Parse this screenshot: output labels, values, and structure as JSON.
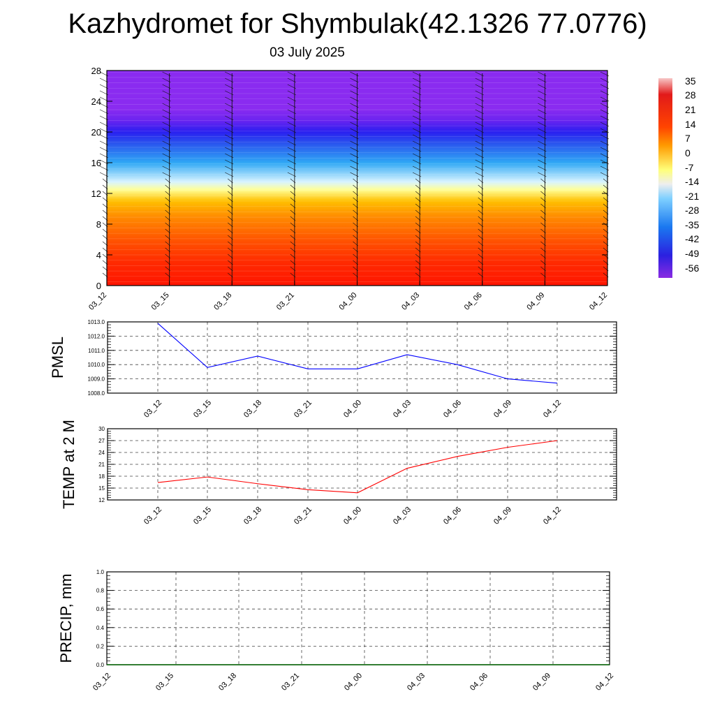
{
  "title": "Kazhydromet for Shymbulak(42.1326 77.0776)",
  "subtitle": "03 July 2025",
  "colorbar": {
    "labels": [
      "35",
      "28",
      "21",
      "14",
      "7",
      "0",
      "-7",
      "-14",
      "-21",
      "-28",
      "-35",
      "-42",
      "-49",
      "-56"
    ],
    "stops": [
      {
        "v": 38,
        "c": "#f7c6c6"
      },
      {
        "v": 30,
        "c": "#e21a1a"
      },
      {
        "v": 14,
        "c": "#ff4400"
      },
      {
        "v": 5,
        "c": "#ff9a00"
      },
      {
        "v": -7,
        "c": "#ffff7a"
      },
      {
        "v": -14,
        "c": "#eeeeee"
      },
      {
        "v": -21,
        "c": "#7fd0ff"
      },
      {
        "v": -35,
        "c": "#1a78f0"
      },
      {
        "v": -49,
        "c": "#2b20e0"
      },
      {
        "v": -60,
        "c": "#8a2be2"
      }
    ]
  },
  "chart_data": [
    {
      "type": "heatmap",
      "name": "vertical profile",
      "x_ticks": [
        "03_12",
        "03_15",
        "03_18",
        "03_21",
        "04_00",
        "04_03",
        "04_06",
        "04_09",
        "04_12"
      ],
      "y_ticks": [
        "0",
        "4",
        "8",
        "12",
        "16",
        "20",
        "24",
        "28"
      ],
      "ylim": [
        0,
        28
      ],
      "colormap_stops": [
        {
          "y": 0,
          "c": "#ff1500"
        },
        {
          "y": 3,
          "c": "#ff2a00"
        },
        {
          "y": 6,
          "c": "#ff5500"
        },
        {
          "y": 9,
          "c": "#ff8c00"
        },
        {
          "y": 11,
          "c": "#ffc000"
        },
        {
          "y": 12.5,
          "c": "#ffff99"
        },
        {
          "y": 13.5,
          "c": "#d8f4ff"
        },
        {
          "y": 16,
          "c": "#2fa8f5"
        },
        {
          "y": 18.5,
          "c": "#2a55ee"
        },
        {
          "y": 20,
          "c": "#2a1ff0"
        },
        {
          "y": 21.5,
          "c": "#6a24f0"
        },
        {
          "y": 23,
          "c": "#8a2bf0"
        },
        {
          "y": 28,
          "c": "#8a2bf0"
        }
      ]
    },
    {
      "type": "line",
      "ylabel": "PMSL",
      "y_ticks": [
        "1008.0",
        "1009.0",
        "1010.0",
        "1011.0",
        "1012.0",
        "1013.0"
      ],
      "ylim": [
        1008,
        1013
      ],
      "x": [
        "03_12",
        "03_15",
        "03_18",
        "03_21",
        "04_00",
        "04_03",
        "04_06",
        "04_09",
        "04_12"
      ],
      "series": [
        {
          "values": [
            1012.9,
            1009.8,
            1010.6,
            1009.7,
            1009.7,
            1010.7,
            1010.0,
            1009.0,
            1008.7
          ],
          "color": "#0000ff"
        }
      ]
    },
    {
      "type": "line",
      "ylabel": "TEMP at 2 M",
      "y_ticks": [
        "12",
        "15",
        "18",
        "21",
        "24",
        "27",
        "30"
      ],
      "ylim": [
        12,
        30
      ],
      "x": [
        "03_12",
        "03_15",
        "03_18",
        "03_21",
        "04_00",
        "04_03",
        "04_06",
        "04_09",
        "04_12"
      ],
      "series": [
        {
          "values": [
            16.4,
            17.8,
            16.1,
            14.6,
            13.8,
            20.0,
            23.0,
            25.3,
            27.0
          ],
          "color": "#ff0000"
        }
      ]
    },
    {
      "type": "line",
      "ylabel": "PRECIP, mm",
      "y_ticks": [
        "0.0",
        "0.2",
        "0.4",
        "0.6",
        "0.8",
        "1.0"
      ],
      "ylim": [
        0,
        1
      ],
      "x_ticks": [
        "03_12",
        "03_15",
        "03_18",
        "03_21",
        "04_00",
        "04_03",
        "04_06",
        "04_09",
        "04_12"
      ],
      "series": [
        {
          "values": [
            0,
            0,
            0,
            0,
            0,
            0,
            0,
            0,
            0,
            0,
            0,
            0,
            0,
            0,
            0,
            0,
            0,
            0,
            0,
            0,
            0,
            0,
            0,
            0,
            0
          ],
          "color": "#006400"
        }
      ]
    }
  ]
}
